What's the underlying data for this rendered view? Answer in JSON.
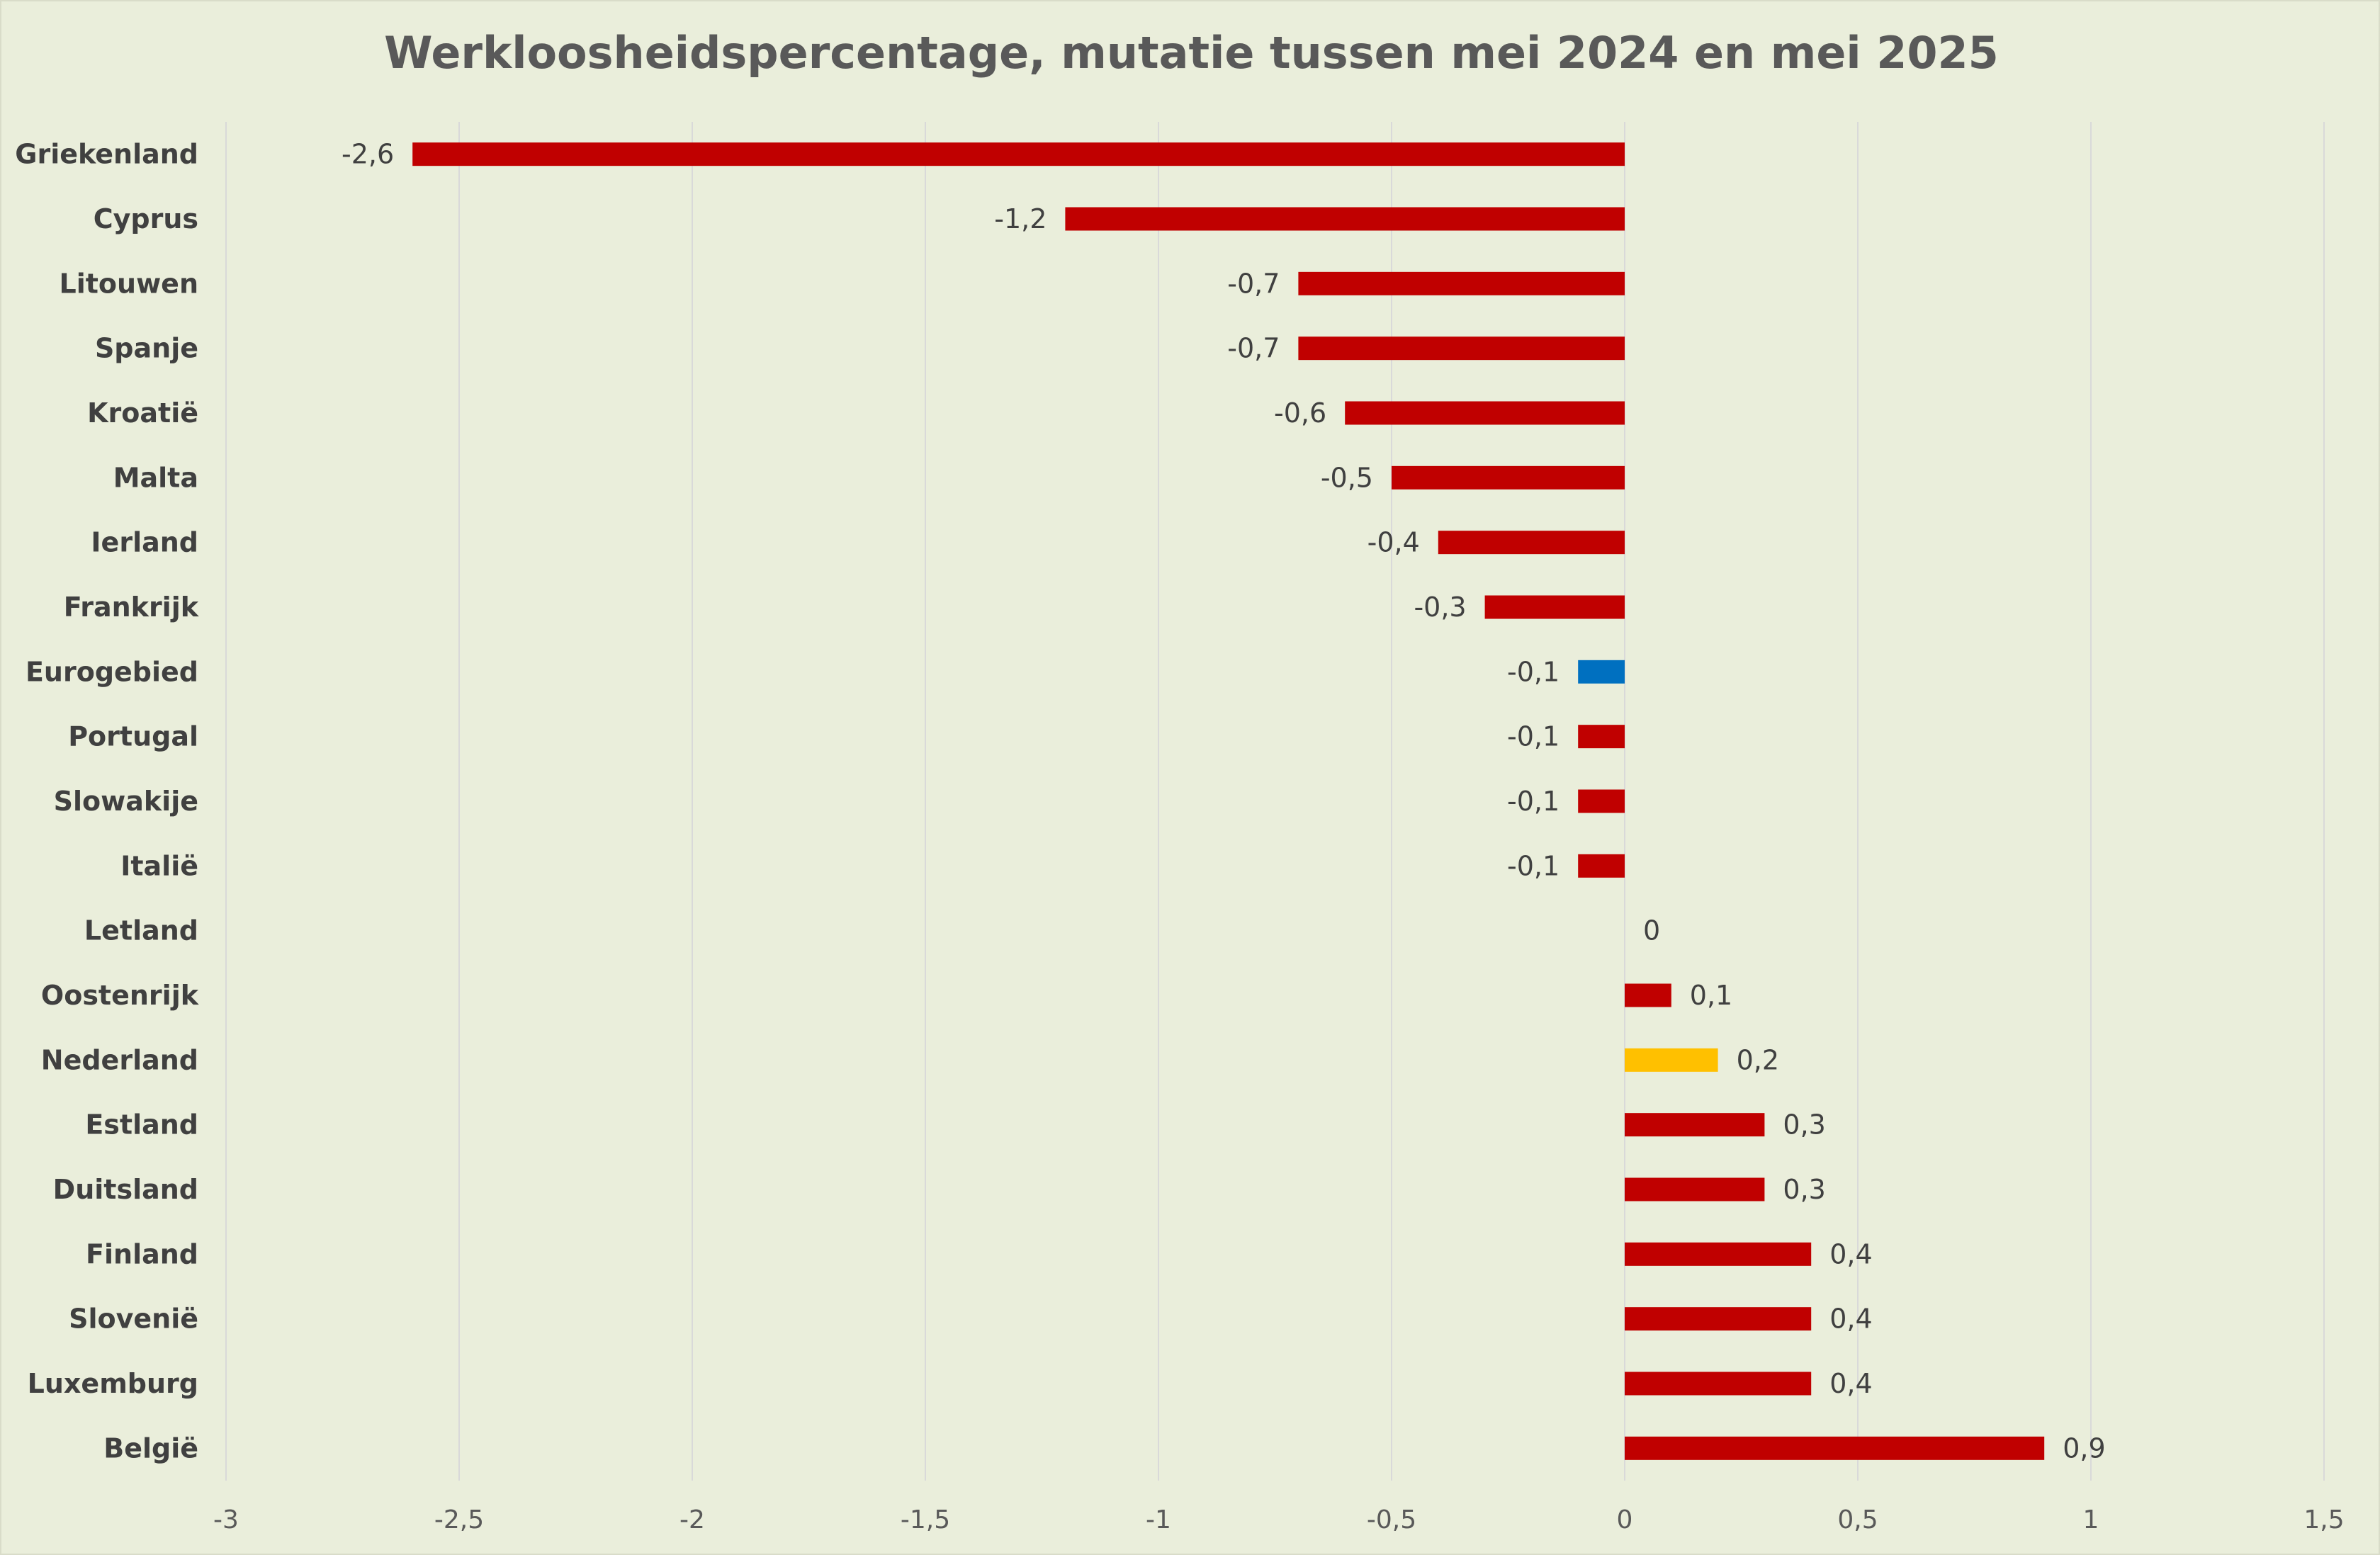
{
  "chart_data": {
    "type": "bar",
    "orientation": "horizontal",
    "title": "Werkloosheidspercentage, mutatie tussen mei 2024 en mei 2025",
    "categories": [
      "Griekenland",
      "Cyprus",
      "Litouwen",
      "Spanje",
      "Kroatië",
      "Malta",
      "Ierland",
      "Frankrijk",
      "Eurogebied",
      "Portugal",
      "Slowakije",
      "Italië",
      "Letland",
      "Oostenrijk",
      "Nederland",
      "Estland",
      "Duitsland",
      "Finland",
      "Slovenië",
      "Luxemburg",
      "België"
    ],
    "values": [
      -2.6,
      -1.2,
      -0.7,
      -0.7,
      -0.6,
      -0.5,
      -0.4,
      -0.3,
      -0.1,
      -0.1,
      -0.1,
      -0.1,
      0,
      0.1,
      0.2,
      0.3,
      0.3,
      0.4,
      0.4,
      0.4,
      0.9
    ],
    "value_labels": [
      "-2,6",
      "-1,2",
      "-0,7",
      "-0,7",
      "-0,6",
      "-0,5",
      "-0,4",
      "-0,3",
      "-0,1",
      "-0,1",
      "-0,1",
      "-0,1",
      "0",
      "0,1",
      "0,2",
      "0,3",
      "0,3",
      "0,4",
      "0,4",
      "0,4",
      "0,9"
    ],
    "bar_colors": [
      "#c00000",
      "#c00000",
      "#c00000",
      "#c00000",
      "#c00000",
      "#c00000",
      "#c00000",
      "#c00000",
      "#0070c0",
      "#c00000",
      "#c00000",
      "#c00000",
      "#c00000",
      "#c00000",
      "#ffc000",
      "#c00000",
      "#c00000",
      "#c00000",
      "#c00000",
      "#c00000",
      "#c00000"
    ],
    "xlim": [
      -3,
      1.5
    ],
    "xticks": [
      -3,
      -2.5,
      -2,
      -1.5,
      -1,
      -0.5,
      0,
      0.5,
      1,
      1.5
    ],
    "xtick_labels": [
      "-3",
      "-2,5",
      "-2",
      "-1,5",
      "-1",
      "-0,5",
      "0",
      "0,5",
      "1",
      "1,5"
    ],
    "grid": true,
    "legend": "none",
    "colors": {
      "background": "#eaeedb",
      "gridline": "#d9d9d9",
      "text": "#404040",
      "title": "#595959"
    }
  }
}
